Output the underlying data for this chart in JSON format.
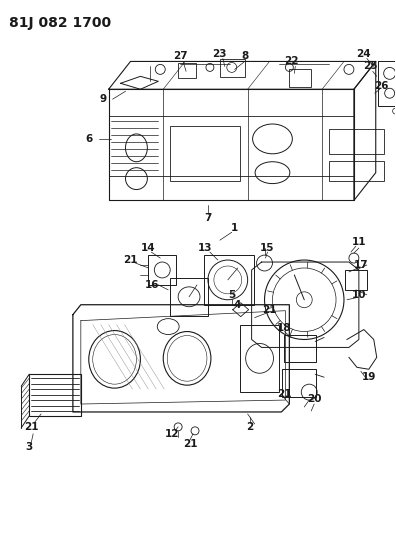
{
  "title": "81J 082 1700",
  "bg": "#f5f5f0",
  "lc": "#1a1a1a",
  "title_fs": 10,
  "label_fs": 7.5,
  "figsize": [
    3.96,
    5.33
  ],
  "dpi": 100
}
